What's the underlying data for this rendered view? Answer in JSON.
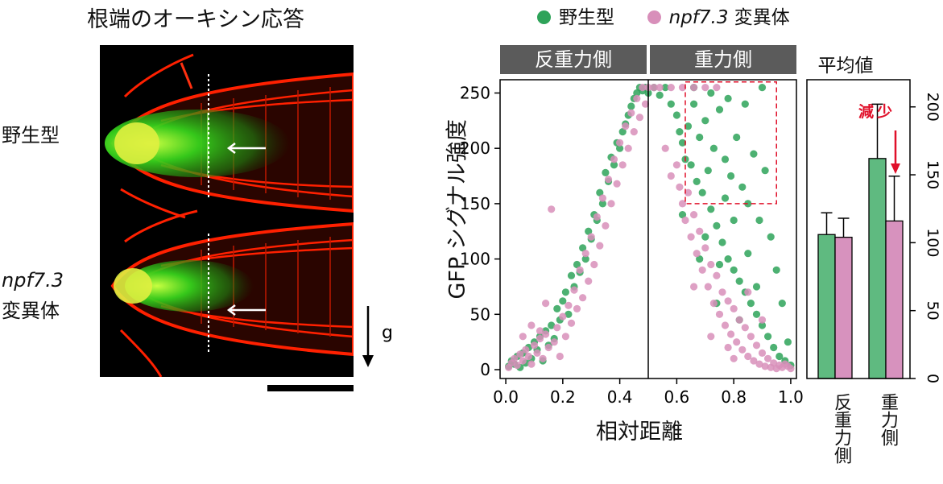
{
  "micrograph": {
    "title": "根端のオーキシン応答",
    "row1_label": "野生型",
    "row2_label_italic": "npf7.3",
    "row2_label_rest": "変異体",
    "gravity_label": "g"
  },
  "legend": {
    "wild_type": "野生型",
    "mutant_italic": "npf7.3",
    "mutant_rest": " 変異体"
  },
  "colors": {
    "wild_type": "#2ea359",
    "mutant": "#d88fba",
    "wild_bar": "#5fba80",
    "mutant_bar": "#d792be",
    "strip": "#5b5b5b",
    "annotation": "#e0102a",
    "root_red": "#ff2000",
    "root_green": "#36d21c"
  },
  "strips": {
    "left": "反重力側",
    "right": "重力側",
    "mean": "平均値"
  },
  "annotation": {
    "decrease": "減少"
  },
  "chart_data": [
    {
      "type": "scatter",
      "xlabel": "相対距離",
      "ylabel": "GFP シグナル強度",
      "xlim": [
        -0.02,
        1.02
      ],
      "ylim": [
        -8,
        262
      ],
      "x_ticks": [
        "0.0",
        "0.2",
        "0.4",
        "0.6",
        "0.8",
        "1.0"
      ],
      "y_ticks": [
        "0",
        "50",
        "100",
        "150",
        "200",
        "250"
      ],
      "divider_x": 0.5,
      "highlight_box": {
        "x": [
          0.63,
          0.95
        ],
        "y": [
          150,
          260
        ]
      },
      "series": [
        {
          "name": "野生型",
          "points": [
            [
              0.01,
              3
            ],
            [
              0.02,
              8
            ],
            [
              0.03,
              5
            ],
            [
              0.04,
              12
            ],
            [
              0.05,
              2
            ],
            [
              0.06,
              15
            ],
            [
              0.07,
              6
            ],
            [
              0.08,
              20
            ],
            [
              0.09,
              10
            ],
            [
              0.1,
              25
            ],
            [
              0.11,
              18
            ],
            [
              0.12,
              30
            ],
            [
              0.13,
              8
            ],
            [
              0.14,
              35
            ],
            [
              0.15,
              22
            ],
            [
              0.16,
              40
            ],
            [
              0.17,
              28
            ],
            [
              0.18,
              55
            ],
            [
              0.19,
              45
            ],
            [
              0.2,
              62
            ],
            [
              0.21,
              70
            ],
            [
              0.22,
              50
            ],
            [
              0.23,
              85
            ],
            [
              0.24,
              75
            ],
            [
              0.25,
              95
            ],
            [
              0.26,
              88
            ],
            [
              0.27,
              110
            ],
            [
              0.28,
              100
            ],
            [
              0.29,
              125
            ],
            [
              0.3,
              118
            ],
            [
              0.31,
              140
            ],
            [
              0.32,
              135
            ],
            [
              0.33,
              160
            ],
            [
              0.34,
              150
            ],
            [
              0.35,
              178
            ],
            [
              0.36,
              170
            ],
            [
              0.37,
              192
            ],
            [
              0.38,
              185
            ],
            [
              0.39,
              205
            ],
            [
              0.4,
              200
            ],
            [
              0.41,
              215
            ],
            [
              0.42,
              222
            ],
            [
              0.43,
              230
            ],
            [
              0.44,
              238
            ],
            [
              0.45,
              245
            ],
            [
              0.46,
              250
            ],
            [
              0.47,
              255
            ],
            [
              0.48,
              252
            ],
            [
              0.49,
              255
            ],
            [
              0.5,
              250
            ],
            [
              0.52,
              255
            ],
            [
              0.54,
              248
            ],
            [
              0.56,
              255
            ],
            [
              0.58,
              240
            ],
            [
              0.6,
              230
            ],
            [
              0.61,
              215
            ],
            [
              0.62,
              205
            ],
            [
              0.63,
              190
            ],
            [
              0.64,
              220
            ],
            [
              0.65,
              185
            ],
            [
              0.66,
              240
            ],
            [
              0.67,
              170
            ],
            [
              0.68,
              210
            ],
            [
              0.69,
              160
            ],
            [
              0.7,
              225
            ],
            [
              0.71,
              180
            ],
            [
              0.72,
              145
            ],
            [
              0.73,
              200
            ],
            [
              0.74,
              130
            ],
            [
              0.75,
              235
            ],
            [
              0.76,
              115
            ],
            [
              0.77,
              190
            ],
            [
              0.78,
              100
            ],
            [
              0.79,
              175
            ],
            [
              0.8,
              90
            ],
            [
              0.81,
              210
            ],
            [
              0.82,
              80
            ],
            [
              0.83,
              165
            ],
            [
              0.84,
              70
            ],
            [
              0.85,
              150
            ],
            [
              0.86,
              60
            ],
            [
              0.87,
              195
            ],
            [
              0.88,
              50
            ],
            [
              0.89,
              135
            ],
            [
              0.9,
              40
            ],
            [
              0.91,
              180
            ],
            [
              0.92,
              30
            ],
            [
              0.93,
              120
            ],
            [
              0.94,
              20
            ],
            [
              0.95,
              90
            ],
            [
              0.96,
              12
            ],
            [
              0.97,
              60
            ],
            [
              0.98,
              8
            ],
            [
              0.99,
              25
            ],
            [
              1.0,
              4
            ],
            [
              0.66,
              255
            ],
            [
              0.72,
              250
            ],
            [
              0.78,
              245
            ],
            [
              0.84,
              240
            ],
            [
              0.9,
              255
            ],
            [
              0.7,
              120
            ],
            [
              0.75,
              95
            ],
            [
              0.8,
              135
            ],
            [
              0.85,
              105
            ],
            [
              0.74,
              60
            ],
            [
              0.82,
              45
            ],
            [
              0.88,
              75
            ],
            [
              0.62,
              140
            ],
            [
              0.68,
              100
            ],
            [
              0.77,
              155
            ]
          ]
        },
        {
          "name": "npf7.3 変異体",
          "points": [
            [
              0.01,
              2
            ],
            [
              0.02,
              6
            ],
            [
              0.03,
              10
            ],
            [
              0.04,
              4
            ],
            [
              0.05,
              14
            ],
            [
              0.06,
              8
            ],
            [
              0.07,
              18
            ],
            [
              0.08,
              12
            ],
            [
              0.09,
              5
            ],
            [
              0.1,
              22
            ],
            [
              0.11,
              15
            ],
            [
              0.12,
              28
            ],
            [
              0.13,
              10
            ],
            [
              0.14,
              32
            ],
            [
              0.15,
              20
            ],
            [
              0.16,
              145
            ],
            [
              0.17,
              25
            ],
            [
              0.18,
              38
            ],
            [
              0.19,
              12
            ],
            [
              0.2,
              48
            ],
            [
              0.21,
              30
            ],
            [
              0.22,
              58
            ],
            [
              0.23,
              42
            ],
            [
              0.24,
              72
            ],
            [
              0.25,
              55
            ],
            [
              0.26,
              90
            ],
            [
              0.27,
              65
            ],
            [
              0.28,
              105
            ],
            [
              0.29,
              80
            ],
            [
              0.3,
              120
            ],
            [
              0.31,
              95
            ],
            [
              0.32,
              138
            ],
            [
              0.33,
              112
            ],
            [
              0.34,
              155
            ],
            [
              0.35,
              130
            ],
            [
              0.36,
              172
            ],
            [
              0.37,
              150
            ],
            [
              0.38,
              190
            ],
            [
              0.39,
              168
            ],
            [
              0.4,
              205
            ],
            [
              0.41,
              185
            ],
            [
              0.42,
              220
            ],
            [
              0.43,
              200
            ],
            [
              0.44,
              232
            ],
            [
              0.45,
              215
            ],
            [
              0.46,
              245
            ],
            [
              0.47,
              228
            ],
            [
              0.48,
              255
            ],
            [
              0.49,
              240
            ],
            [
              0.5,
              255
            ],
            [
              0.52,
              255
            ],
            [
              0.54,
              255
            ],
            [
              0.56,
              200
            ],
            [
              0.58,
              175
            ],
            [
              0.6,
              185
            ],
            [
              0.61,
              165
            ],
            [
              0.62,
              150
            ],
            [
              0.63,
              135
            ],
            [
              0.64,
              160
            ],
            [
              0.65,
              120
            ],
            [
              0.66,
              140
            ],
            [
              0.67,
              105
            ],
            [
              0.68,
              125
            ],
            [
              0.69,
              90
            ],
            [
              0.7,
              110
            ],
            [
              0.71,
              75
            ],
            [
              0.72,
              95
            ],
            [
              0.73,
              60
            ],
            [
              0.74,
              85
            ],
            [
              0.75,
              50
            ],
            [
              0.76,
              70
            ],
            [
              0.77,
              40
            ],
            [
              0.78,
              62
            ],
            [
              0.79,
              32
            ],
            [
              0.8,
              55
            ],
            [
              0.81,
              25
            ],
            [
              0.82,
              45
            ],
            [
              0.83,
              18
            ],
            [
              0.84,
              38
            ],
            [
              0.85,
              12
            ],
            [
              0.86,
              30
            ],
            [
              0.87,
              8
            ],
            [
              0.88,
              22
            ],
            [
              0.89,
              5
            ],
            [
              0.9,
              15
            ],
            [
              0.91,
              3
            ],
            [
              0.92,
              10
            ],
            [
              0.93,
              2
            ],
            [
              0.94,
              6
            ],
            [
              0.95,
              1
            ],
            [
              0.96,
              4
            ],
            [
              0.97,
              2
            ],
            [
              0.98,
              5
            ],
            [
              0.99,
              3
            ],
            [
              1.0,
              1
            ],
            [
              0.58,
              255
            ],
            [
              0.62,
              255
            ],
            [
              0.66,
              255
            ],
            [
              0.7,
              255
            ],
            [
              0.74,
              255
            ],
            [
              0.06,
              30
            ],
            [
              0.09,
              40
            ],
            [
              0.12,
              35
            ],
            [
              0.14,
              60
            ],
            [
              0.66,
              75
            ],
            [
              0.72,
              30
            ],
            [
              0.78,
              20
            ],
            [
              0.8,
              10
            ],
            [
              0.85,
              70
            ],
            [
              0.9,
              45
            ]
          ]
        }
      ]
    },
    {
      "type": "bar",
      "title": "平均値",
      "categories": [
        "反重力側",
        "重力側"
      ],
      "ylim": [
        0,
        220
      ],
      "y_ticks": [
        "0",
        "50",
        "100",
        "150",
        "200"
      ],
      "series": [
        {
          "name": "野生型",
          "values": [
            106,
            162
          ],
          "errors": [
            16,
            40
          ]
        },
        {
          "name": "npf7.3 変異体",
          "values": [
            104,
            116
          ],
          "errors": [
            14,
            33
          ]
        }
      ]
    }
  ]
}
